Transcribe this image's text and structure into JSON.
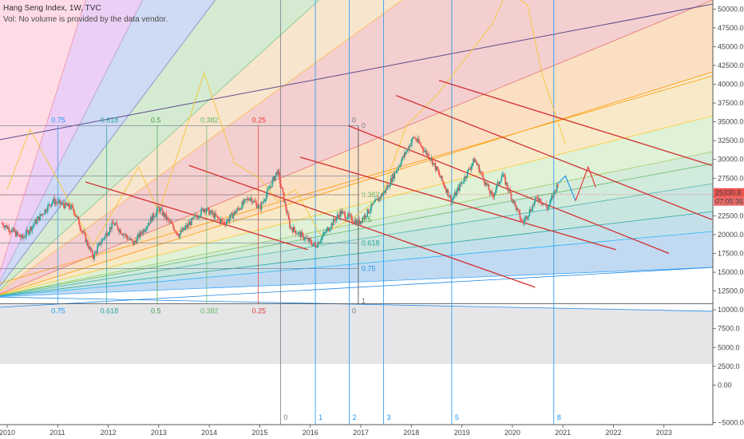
{
  "legend": {
    "symbol": "Hang Seng Index, 1W, TVC",
    "volume_note": "Vol: No volume is provided by the data vendor."
  },
  "price_badge": {
    "price": "25330.8",
    "countdown": "07:05:36",
    "color": "#ef5350"
  },
  "colors": {
    "up_candle": "#26a69a",
    "down_candle": "#ef5350",
    "channel": "#d32f2f",
    "zigzag": "#f5c842",
    "cycle": "#2196f3"
  },
  "chart_data": {
    "type": "candlestick",
    "price_axis": {
      "min": -5000,
      "max": 50000,
      "ticks": [
        50000,
        47500,
        45000,
        42500,
        40000,
        37500,
        35000,
        32500,
        30000,
        27500,
        25000,
        22500,
        20000,
        17500,
        15000,
        12500,
        10000,
        7500,
        5000,
        2500,
        0,
        -5000
      ],
      "tick_labels": [
        "50000.0",
        "47500.0",
        "45000.0",
        "42500.0",
        "40000.0",
        "37500.0",
        "35000.0",
        "32500.0",
        "30000.0",
        "27500.0",
        "25000.0",
        "22500.0",
        "20000.0",
        "17500.0",
        "15000.0",
        "12500.0",
        "10000.0",
        "7500.0",
        "5000.0",
        "2500.0",
        "0.00",
        "−5000.0"
      ]
    },
    "time_axis": {
      "min": 2010.0,
      "max": 2024.0,
      "ticks": [
        2010,
        2011,
        2012,
        2013,
        2014,
        2015,
        2016,
        2017,
        2018,
        2019,
        2020,
        2021,
        2022,
        2023
      ],
      "tick_labels": [
        "2010",
        "2011",
        "2012",
        "2013",
        "2014",
        "2015",
        "2016",
        "2017",
        "2018",
        "2019",
        "2020",
        "2021",
        "2022",
        "2023"
      ]
    },
    "price_path": [
      [
        2009.9,
        21500
      ],
      [
        2010.3,
        19500
      ],
      [
        2010.9,
        24500
      ],
      [
        2011.3,
        23500
      ],
      [
        2011.7,
        17000
      ],
      [
        2011.85,
        19000
      ],
      [
        2012.1,
        21500
      ],
      [
        2012.5,
        18800
      ],
      [
        2013.0,
        23500
      ],
      [
        2013.4,
        20000
      ],
      [
        2013.9,
        23500
      ],
      [
        2014.3,
        21500
      ],
      [
        2014.8,
        25000
      ],
      [
        2015.0,
        23500
      ],
      [
        2015.35,
        28500
      ],
      [
        2015.6,
        21000
      ],
      [
        2016.1,
        18500
      ],
      [
        2016.6,
        23000
      ],
      [
        2016.95,
        21500
      ],
      [
        2017.5,
        26000
      ],
      [
        2018.05,
        33000
      ],
      [
        2018.4,
        30000
      ],
      [
        2018.8,
        24500
      ],
      [
        2019.25,
        30000
      ],
      [
        2019.6,
        25000
      ],
      [
        2019.8,
        28000
      ],
      [
        2020.2,
        21500
      ],
      [
        2020.5,
        25000
      ],
      [
        2020.7,
        23500
      ],
      [
        2020.9,
        26800
      ]
    ],
    "projection_path": [
      [
        2020.9,
        26800
      ],
      [
        2021.05,
        27800
      ],
      [
        2021.25,
        24500
      ],
      [
        2021.5,
        29000
      ],
      [
        2021.65,
        26300
      ]
    ],
    "zigzag": [
      [
        2010.0,
        26000
      ],
      [
        2010.45,
        34000
      ],
      [
        2010.9,
        28500
      ],
      [
        2011.7,
        18500
      ],
      [
        2012.6,
        29000
      ],
      [
        2013.0,
        23000
      ],
      [
        2013.9,
        41500
      ],
      [
        2014.5,
        29500
      ],
      [
        2015.0,
        27500
      ],
      [
        2015.35,
        24500
      ],
      [
        2015.7,
        26000
      ],
      [
        2016.2,
        20000
      ],
      [
        2016.8,
        22000
      ],
      [
        2017.4,
        25000
      ],
      [
        2017.9,
        34500
      ],
      [
        2018.5,
        38500
      ],
      [
        2019.6,
        48000
      ],
      [
        2019.9,
        52500
      ],
      [
        2020.3,
        50500
      ],
      [
        2020.6,
        41000
      ],
      [
        2021.05,
        32000
      ]
    ],
    "channels": [
      {
        "start": [
          2011.55,
          27000
        ],
        "end": [
          2015.95,
          18000
        ]
      },
      {
        "start": [
          2013.6,
          29200
        ],
        "end": [
          2020.45,
          13000
        ]
      },
      {
        "start": [
          2015.8,
          30300
        ],
        "end": [
          2022.05,
          18000
        ]
      },
      {
        "start": [
          2016.75,
          34500
        ],
        "end": [
          2023.1,
          17500
        ]
      },
      {
        "start": [
          2017.7,
          38500
        ],
        "end": [
          2023.95,
          22000
        ]
      },
      {
        "start": [
          2018.55,
          40500
        ],
        "end": [
          2023.95,
          29200
        ]
      }
    ],
    "fib_levels_top": [
      {
        "label": "0.75",
        "time": 2011.0,
        "color": "#2196f3"
      },
      {
        "label": "0.618",
        "time": 2011.97,
        "color": "#26a69a"
      },
      {
        "label": "0.5",
        "time": 2012.97,
        "color": "#43a047"
      },
      {
        "label": "0.382",
        "time": 2013.95,
        "color": "#66bb6a"
      },
      {
        "label": "0.25",
        "time": 2014.97,
        "color": "#e53935"
      },
      {
        "label": "0",
        "time": 2016.95,
        "color": "#787b86"
      }
    ],
    "fib_levels_bottom": [
      {
        "label": "0.75",
        "time": 2011.0,
        "color": "#2196f3"
      },
      {
        "label": "0.618",
        "time": 2011.97,
        "color": "#26a69a"
      },
      {
        "label": "0.5",
        "time": 2012.97,
        "color": "#43a047"
      },
      {
        "label": "0.382",
        "time": 2013.95,
        "color": "#66bb6a"
      },
      {
        "label": "0.25",
        "time": 2014.97,
        "color": "#e53935"
      },
      {
        "label": "0",
        "time": 2016.95,
        "color": "#787b86"
      }
    ],
    "fib_levels_inner": [
      {
        "label": "0.382",
        "time": 2016.95,
        "price": 25300,
        "color": "#66bb6a"
      },
      {
        "label": "0.5",
        "time": 2016.95,
        "price": 22000,
        "color": "#43a047"
      },
      {
        "label": "0.618",
        "time": 2016.95,
        "price": 18900,
        "color": "#26a69a"
      },
      {
        "label": "0.75",
        "time": 2016.95,
        "price": 15500,
        "color": "#2196f3"
      },
      {
        "label": "1",
        "time": 2016.95,
        "price": 11200,
        "color": "#787b86"
      },
      {
        "label": "0",
        "time": 2016.95,
        "price": 34500,
        "color": "#787b86"
      }
    ],
    "time_cycles": [
      {
        "label": "0",
        "time": 2015.41
      },
      {
        "label": "1",
        "time": 2016.1
      },
      {
        "label": "2",
        "time": 2016.77
      },
      {
        "label": "3",
        "time": 2017.45
      },
      {
        "label": "5",
        "time": 2018.8
      },
      {
        "label": "8",
        "time": 2020.82
      }
    ]
  }
}
